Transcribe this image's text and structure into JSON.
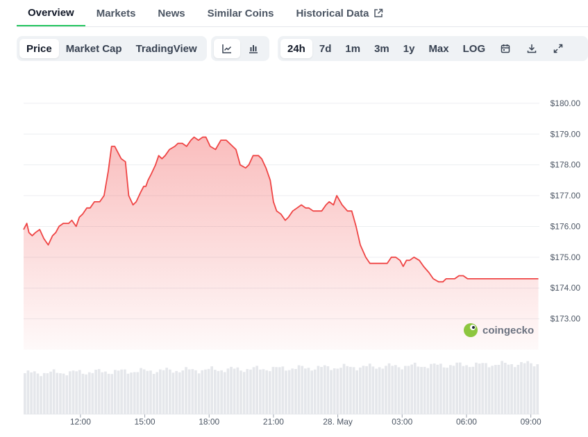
{
  "tabs": [
    {
      "label": "Overview",
      "active": true
    },
    {
      "label": "Markets"
    },
    {
      "label": "News"
    },
    {
      "label": "Similar Coins"
    },
    {
      "label": "Historical Data",
      "icon": "external-link-icon"
    }
  ],
  "toolbar": {
    "chart_kind": [
      "Price",
      "Market Cap",
      "TradingView"
    ],
    "chart_kind_selected": "Price",
    "chart_style_icons": [
      "line-chart-icon",
      "candlestick-icon"
    ],
    "ranges": [
      "24h",
      "7d",
      "1m",
      "3m",
      "1y",
      "Max",
      "LOG"
    ],
    "range_selected": "24h",
    "action_icons": [
      "calendar-icon",
      "download-icon",
      "expand-icon"
    ]
  },
  "watermark": "coingecko",
  "colors": {
    "line": "#ef4444",
    "accent": "#22c55e",
    "volume": "#e5e7eb"
  },
  "chart_data": {
    "type": "area",
    "xlabel": "",
    "ylabel": "",
    "y_ticks": [
      "$173.00",
      "$174.00",
      "$175.00",
      "$176.00",
      "$177.00",
      "$178.00",
      "$179.00",
      "$180.00"
    ],
    "ylim": [
      172,
      180.2
    ],
    "y_min_tick": 173,
    "y_tick_step": 1,
    "x_ticks": [
      "12:00",
      "15:00",
      "18:00",
      "21:00",
      "28. May",
      "03:00",
      "06:00",
      "09:00"
    ],
    "x_tick_hours": [
      12,
      15,
      18,
      21,
      24,
      27,
      30,
      33
    ],
    "x_range_hours": [
      9.35,
      33.4
    ],
    "grid": true,
    "series": [
      {
        "x_hours": [
          9.35,
          9.5,
          9.6,
          9.75,
          9.9,
          10.1,
          10.3,
          10.5,
          10.7,
          10.85,
          11.0,
          11.2,
          11.45,
          11.6,
          11.8,
          11.95,
          12.1,
          12.3,
          12.45,
          12.65,
          12.9,
          13.1,
          13.3,
          13.45,
          13.6,
          13.75,
          13.9,
          14.1,
          14.25,
          14.45,
          14.6,
          14.8,
          14.95,
          15.05,
          15.15,
          15.3,
          15.5,
          15.65,
          15.8,
          15.95,
          16.15,
          16.4,
          16.55,
          16.75,
          16.95,
          17.15,
          17.3,
          17.5,
          17.7,
          17.85,
          18.05,
          18.3,
          18.55,
          18.8,
          18.95,
          19.25,
          19.45,
          19.7,
          19.85,
          20.05,
          20.3,
          20.45,
          20.65,
          20.85,
          21.0,
          21.15,
          21.35,
          21.55,
          21.7,
          21.9,
          22.1,
          22.3,
          22.5,
          22.65,
          22.85,
          23.05,
          23.25,
          23.45,
          23.6,
          23.8,
          23.95,
          24.2,
          24.45,
          24.65,
          24.85,
          25.05,
          25.3,
          25.5,
          25.7,
          25.9,
          26.1,
          26.3,
          26.5,
          26.7,
          26.9,
          27.05,
          27.2,
          27.35,
          27.55,
          27.8,
          28.0,
          28.25,
          28.45,
          28.7,
          28.9,
          29.05,
          29.25,
          29.45,
          29.65,
          29.85,
          30.05,
          30.25,
          30.45,
          30.6,
          30.8,
          31.0,
          31.2,
          31.4,
          31.6,
          31.8,
          32.05,
          32.3,
          32.5,
          32.75,
          33.0,
          33.2,
          33.35
        ],
        "values": [
          175.9,
          176.1,
          175.8,
          175.7,
          175.8,
          175.9,
          175.6,
          175.4,
          175.7,
          175.8,
          176.0,
          176.1,
          176.1,
          176.2,
          176.0,
          176.3,
          176.4,
          176.6,
          176.6,
          176.8,
          176.8,
          177.0,
          177.8,
          178.6,
          178.6,
          178.4,
          178.2,
          178.1,
          177.0,
          176.7,
          176.8,
          177.1,
          177.3,
          177.3,
          177.5,
          177.7,
          178.0,
          178.3,
          178.2,
          178.3,
          178.5,
          178.6,
          178.7,
          178.7,
          178.6,
          178.8,
          178.9,
          178.8,
          178.9,
          178.9,
          178.6,
          178.5,
          178.8,
          178.8,
          178.7,
          178.5,
          178.0,
          177.9,
          178.0,
          178.3,
          178.3,
          178.2,
          177.9,
          177.5,
          176.8,
          176.5,
          176.4,
          176.2,
          176.3,
          176.5,
          176.6,
          176.7,
          176.6,
          176.6,
          176.5,
          176.5,
          176.5,
          176.7,
          176.8,
          176.7,
          177.0,
          176.7,
          176.5,
          176.5,
          176.0,
          175.4,
          175.0,
          174.8,
          174.8,
          174.8,
          174.8,
          174.8,
          175.0,
          175.0,
          174.9,
          174.7,
          174.9,
          174.9,
          175.0,
          174.9,
          174.7,
          174.5,
          174.3,
          174.2,
          174.2,
          174.3,
          174.3,
          174.3,
          174.4,
          174.4,
          174.3,
          174.3,
          174.3,
          174.3,
          174.3,
          174.3,
          174.3,
          174.3,
          174.3,
          174.3,
          174.3,
          174.3,
          174.3,
          174.3,
          174.3,
          174.3,
          174.3
        ]
      }
    ]
  }
}
